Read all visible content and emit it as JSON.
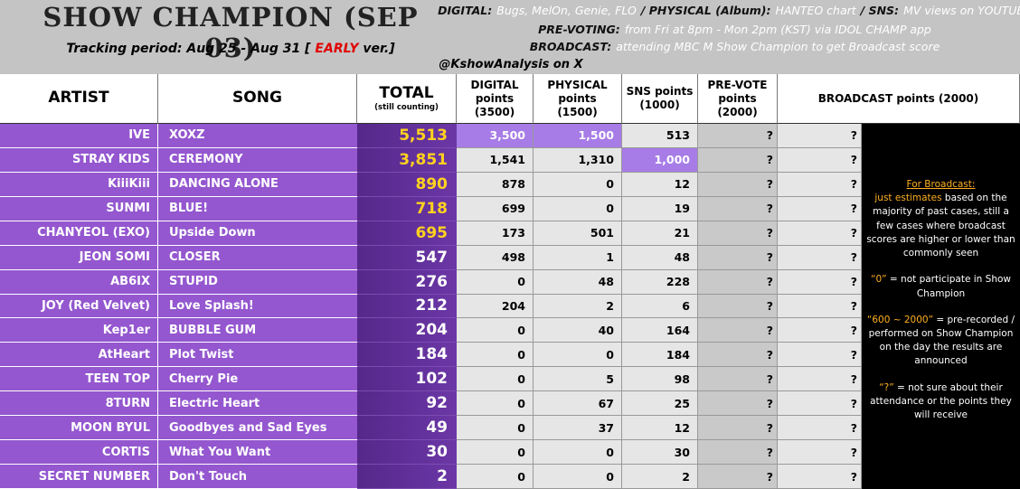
{
  "header": {
    "title": "SHOW CHAMPION (SEP 03)",
    "tracking": {
      "before": "Tracking period: Aug 25 - Aug 31 [",
      "flag": "EARLY",
      "after": "ver.]"
    },
    "info": [
      [
        {
          "label": "DIGITAL:",
          "value": "Bugs, MelOn, Genie, FLO"
        },
        {
          "label": "/ PHYSICAL (Album):",
          "value": "HANTEO chart"
        },
        {
          "label": "/ SNS:",
          "value": "MV views on YOUTUBE"
        }
      ],
      [
        {
          "label": "PRE-VOTING:",
          "value": "from Fri at 8pm - Mon 2pm (KST) via IDOL CHAMP app"
        }
      ],
      [
        {
          "label": "BROADCAST:",
          "value": "attending MBC M Show Champion to get Broadcast score"
        }
      ]
    ],
    "credit": "@KshowAnalysis on X"
  },
  "table": {
    "columns": [
      [
        "ARTIST"
      ],
      [
        "SONG"
      ],
      [
        "TOTAL",
        "(still counting)"
      ],
      [
        "DIGITAL",
        "points",
        "(3500)"
      ],
      [
        "PHYSICAL",
        "points",
        "(1500)"
      ],
      [
        "SNS points",
        "(1000)"
      ],
      [
        "PRE-VOTE",
        "points",
        "(2000)"
      ],
      [
        "BROADCAST points (2000)"
      ]
    ],
    "rows": [
      [
        "IVE",
        "XOXZ",
        "5,513",
        "3,500",
        "1,500",
        "513",
        "?",
        "?"
      ],
      [
        "STRAY KIDS",
        "CEREMONY",
        "3,851",
        "1,541",
        "1,310",
        "1,000",
        "?",
        "?"
      ],
      [
        "KiiiKiii",
        "DANCING ALONE",
        "890",
        "878",
        "0",
        "12",
        "?",
        "?"
      ],
      [
        "SUNMI",
        "BLUE!",
        "718",
        "699",
        "0",
        "19",
        "?",
        "?"
      ],
      [
        "CHANYEOL (EXO)",
        "Upside Down",
        "695",
        "173",
        "501",
        "21",
        "?",
        "?"
      ],
      [
        "JEON SOMI",
        "CLOSER",
        "547",
        "498",
        "1",
        "48",
        "?",
        "?"
      ],
      [
        "AB6IX",
        "STUPID",
        "276",
        "0",
        "48",
        "228",
        "?",
        "?"
      ],
      [
        "JOY (Red Velvet)",
        "Love Splash!",
        "212",
        "204",
        "2",
        "6",
        "?",
        "?"
      ],
      [
        "Kep1er",
        "BUBBLE GUM",
        "204",
        "0",
        "40",
        "164",
        "?",
        "?"
      ],
      [
        "AtHeart",
        "Plot Twist",
        "184",
        "0",
        "0",
        "184",
        "?",
        "?"
      ],
      [
        "TEEN TOP",
        "Cherry Pie",
        "102",
        "0",
        "5",
        "98",
        "?",
        "?"
      ],
      [
        "8TURN",
        "Electric Heart",
        "92",
        "0",
        "67",
        "25",
        "?",
        "?"
      ],
      [
        "MOON BYUL",
        "Goodbyes and Sad Eyes",
        "49",
        "0",
        "37",
        "12",
        "?",
        "?"
      ],
      [
        "CORTIS",
        "What You Want",
        "30",
        "0",
        "0",
        "30",
        "?",
        "?"
      ],
      [
        "SECRET NUMBER",
        "Don't Touch",
        "2",
        "0",
        "0",
        "2",
        "?",
        "?"
      ]
    ]
  },
  "notes": [
    {
      "heading": "For Broadcast:",
      "em": "just estimates",
      "text": " based on the majority of past cases, still a few cases where broadcast scores are higher or lower than commonly seen"
    },
    {
      "em": "“0”",
      "text": " = not participate in Show Champion"
    },
    {
      "em": "“600 ~ 2000”",
      "text": " = pre-recorded / performed on Show Champion on the day the results are announced"
    },
    {
      "em": "“?”",
      "text": " = not sure about their attendance or the points they will receive"
    }
  ]
}
